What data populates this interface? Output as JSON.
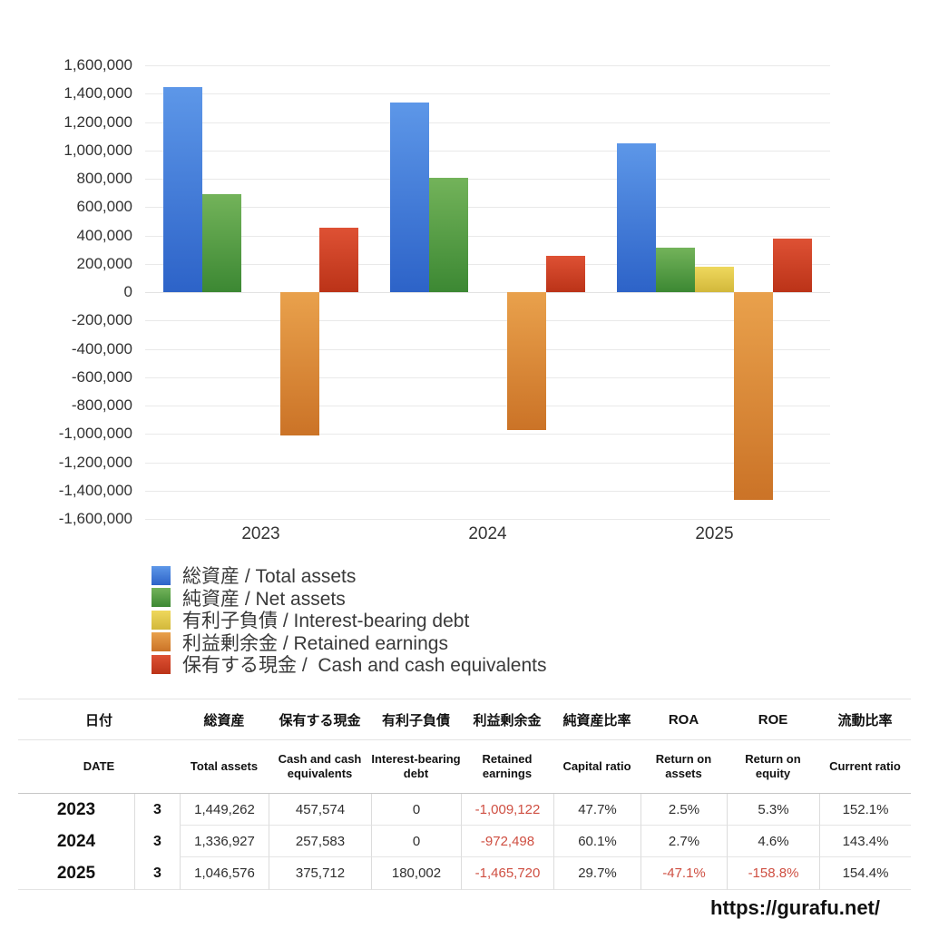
{
  "chart_data": {
    "type": "bar",
    "categories": [
      "2023",
      "2024",
      "2025"
    ],
    "series": [
      {
        "key": "total-assets",
        "label": "総資産 / Total assets",
        "values": [
          1449262,
          1336927,
          1046576
        ],
        "color_top": "#5d97e8",
        "color_bottom": "#2d63c8"
      },
      {
        "key": "net-assets",
        "label": "純資産 / Net assets",
        "values": [
          691298,
          803493,
          310833
        ],
        "color_top": "#73b35a",
        "color_bottom": "#3c8833"
      },
      {
        "key": "interest-bearing-debt",
        "label": "有利子負債 / Interest-bearing debt",
        "values": [
          0,
          0,
          180002
        ],
        "color_top": "#efd85d",
        "color_bottom": "#d2b83b"
      },
      {
        "key": "retained-earnings",
        "label": "利益剰余金 / Retained earnings",
        "values": [
          -1009122,
          -972498,
          -1465720
        ],
        "color_top": "#e9a14c",
        "color_bottom": "#cb7327"
      },
      {
        "key": "cash",
        "label": "保有する現金 /  Cash and cash equivalents",
        "values": [
          457574,
          257583,
          375712
        ],
        "color_top": "#de5134",
        "color_bottom": "#bb3318"
      }
    ],
    "title": "",
    "xlabel": "",
    "ylabel": "",
    "ylim": [
      -1600000,
      1600000
    ],
    "ytick_step": 200000,
    "grid": true,
    "legend_position": "bottom-left"
  },
  "table": {
    "headers_ja": [
      "日付",
      "総資産",
      "保有する現金",
      "有利子負債",
      "利益剰余金",
      "純資産比率",
      "ROA",
      "ROE",
      "流動比率"
    ],
    "headers_en": [
      "DATE",
      "Total assets",
      "Cash and cash equivalents",
      "Interest-bearing debt",
      "Retained earnings",
      "Capital ratio",
      "Return on assets",
      "Return on equity",
      "Current ratio"
    ],
    "rows": [
      {
        "year": "2023",
        "month": "3",
        "cells": [
          "1,449,262",
          "457,574",
          "0",
          "-1,009,122",
          "47.7%",
          "2.5%",
          "5.3%",
          "152.1%"
        ],
        "neg": [
          3
        ]
      },
      {
        "year": "2024",
        "month": "3",
        "cells": [
          "1,336,927",
          "257,583",
          "0",
          "-972,498",
          "60.1%",
          "2.7%",
          "4.6%",
          "143.4%"
        ],
        "neg": [
          3
        ]
      },
      {
        "year": "2025",
        "month": "3",
        "cells": [
          "1,046,576",
          "375,712",
          "180,002",
          "-1,465,720",
          "29.7%",
          "-47.1%",
          "-158.8%",
          "154.4%"
        ],
        "neg": [
          3,
          5,
          6
        ]
      }
    ]
  },
  "footer": {
    "url": "https://gurafu.net/"
  }
}
